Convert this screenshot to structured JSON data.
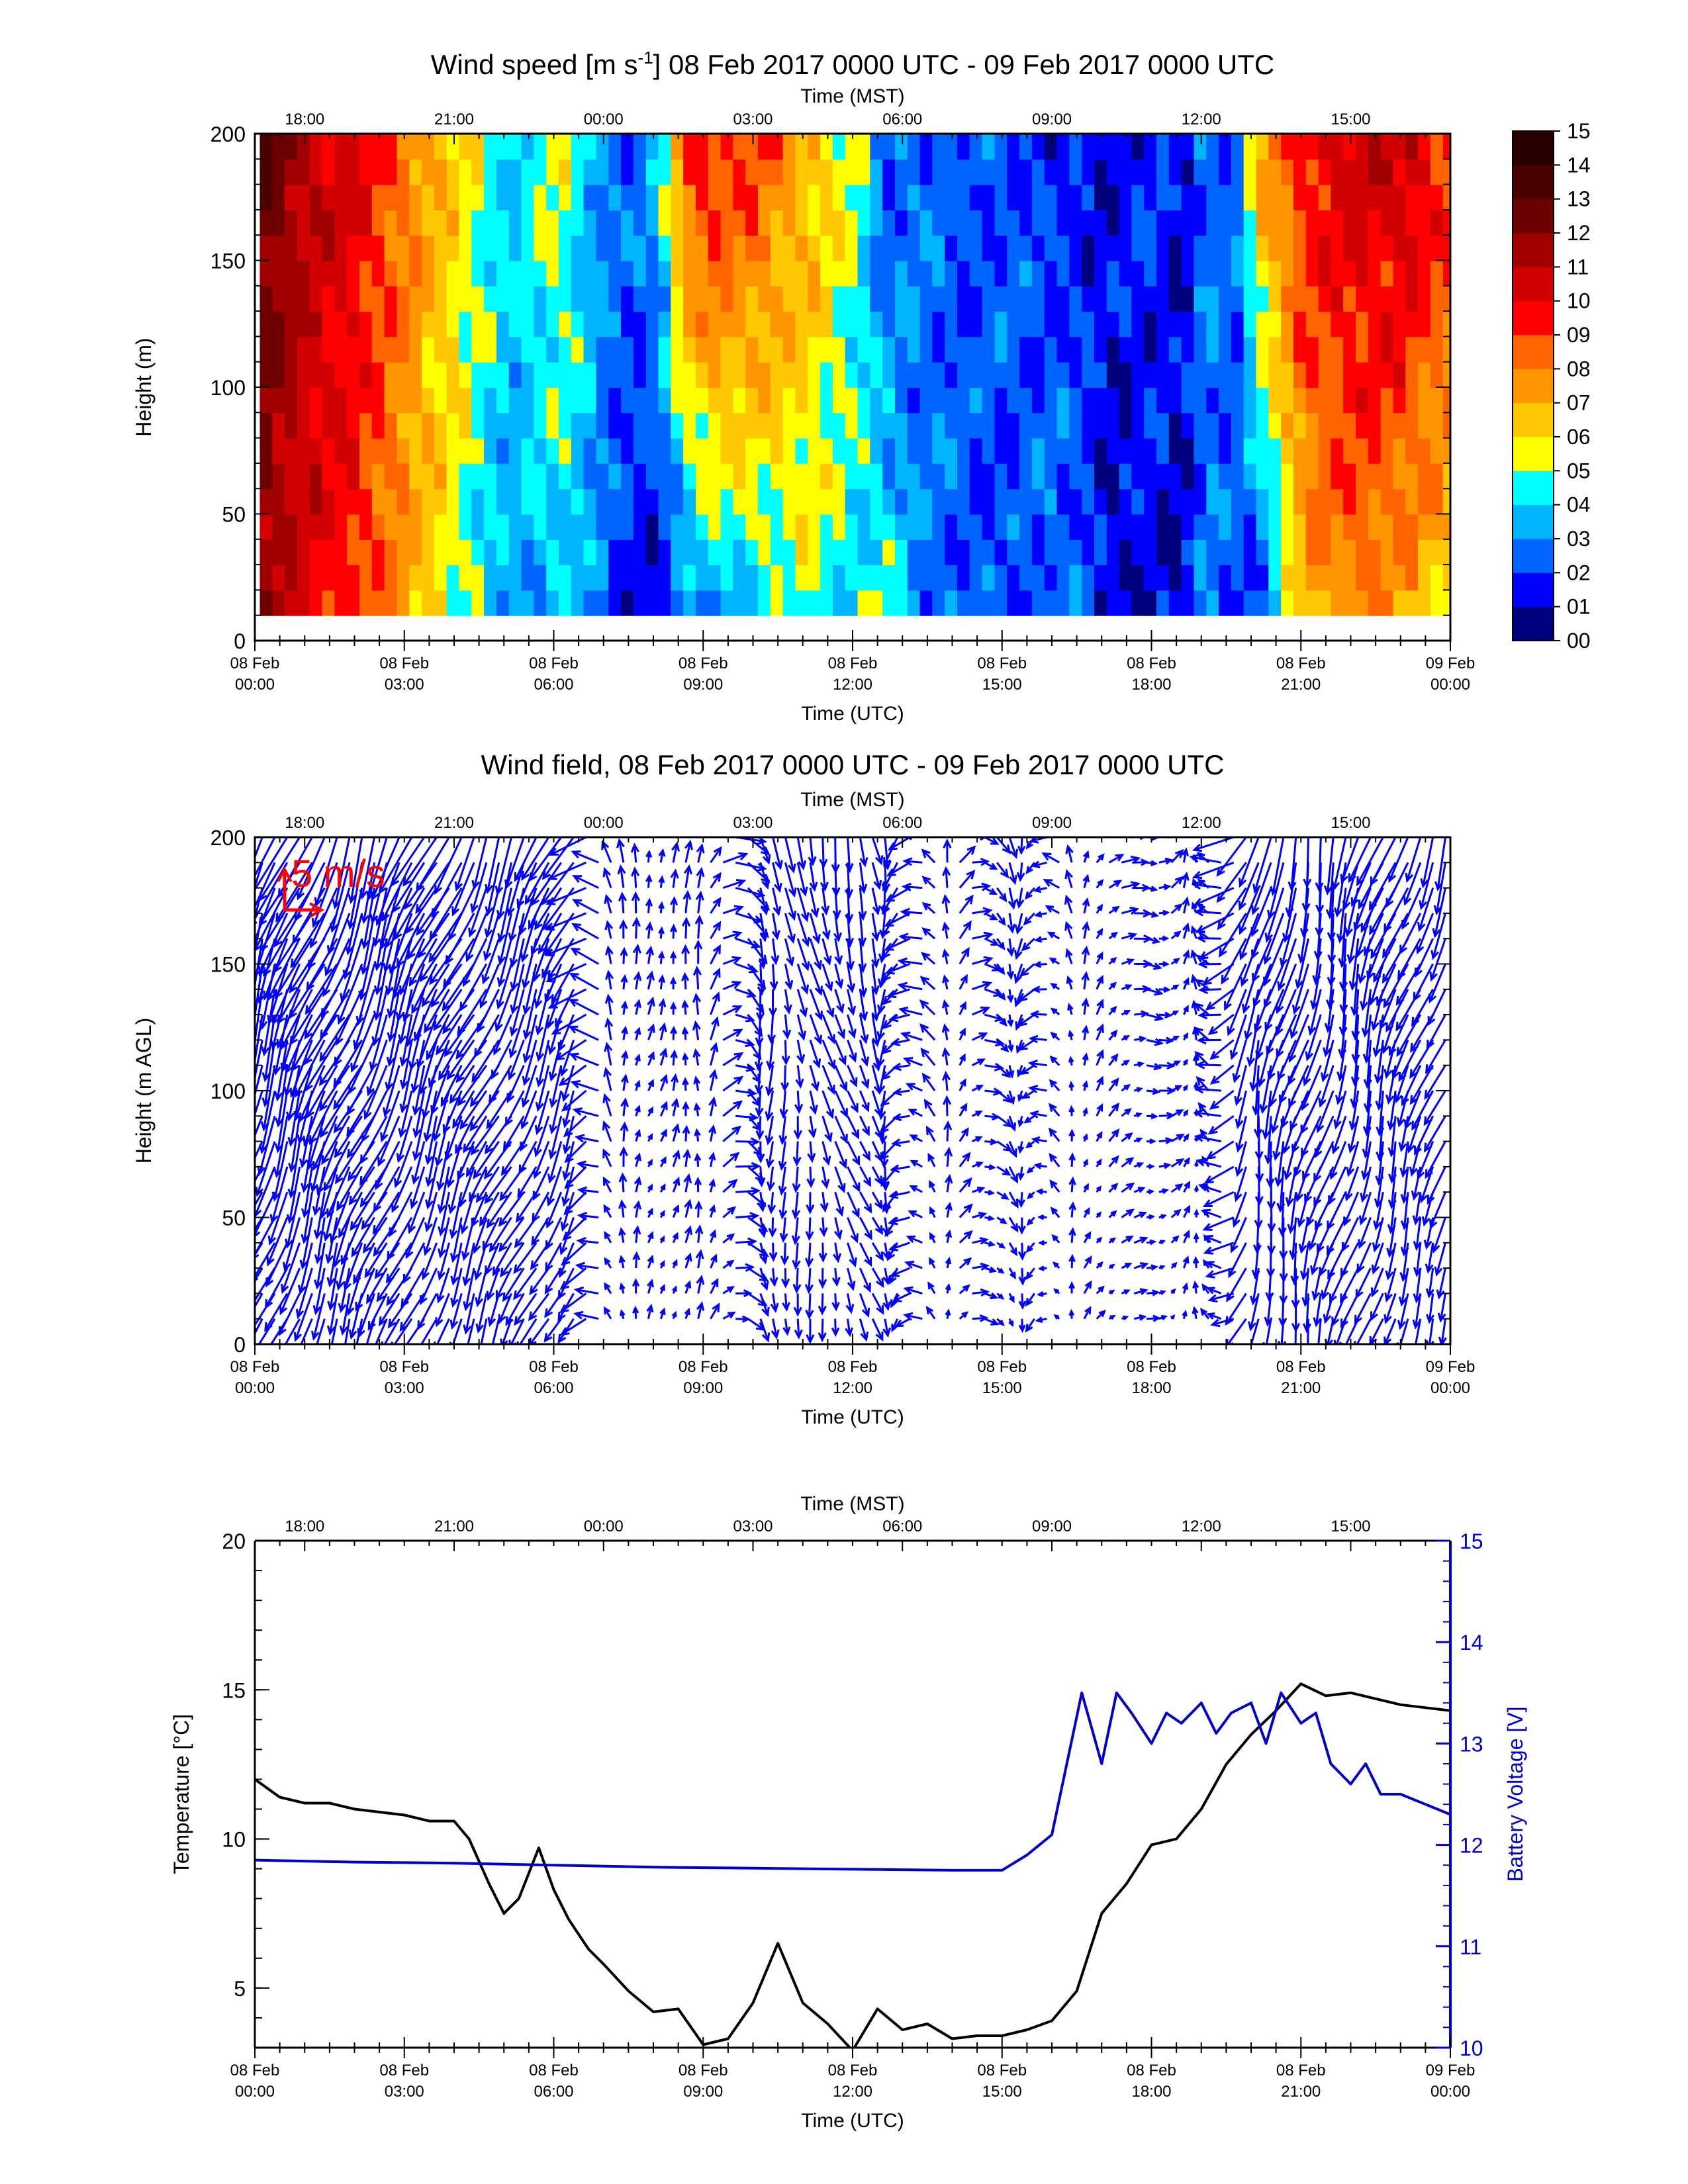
{
  "chart_data": [
    {
      "type": "heatmap",
      "title_main": "Wind speed [m s",
      "title_sup": "-1",
      "title_rest": "] 08 Feb 2017 0000 UTC - 09 Feb 2017 0000 UTC",
      "xlabel": "Time (UTC)",
      "x2label": "Time (MST)",
      "ylabel": "Height (m)",
      "xlim": [
        0,
        24
      ],
      "ylim": [
        0,
        200
      ],
      "yticks": [
        "0",
        "50",
        "100",
        "150",
        "200"
      ],
      "xticks_top": [
        "18:00",
        "21:00",
        "00:00",
        "03:00",
        "06:00",
        "09:00",
        "12:00",
        "15:00"
      ],
      "xticks_bottom_date": [
        "08 Feb",
        "08 Feb",
        "08 Feb",
        "08 Feb",
        "08 Feb",
        "08 Feb",
        "08 Feb",
        "08 Feb",
        "09 Feb"
      ],
      "xticks_bottom_time": [
        "00:00",
        "03:00",
        "06:00",
        "09:00",
        "12:00",
        "15:00",
        "18:00",
        "21:00",
        "00:00"
      ],
      "colorbar_labels": [
        "00",
        "01",
        "02",
        "03",
        "04",
        "05",
        "06",
        "07",
        "08",
        "09",
        "10",
        "11",
        "12",
        "13",
        "14",
        "15"
      ],
      "colorbar_colors": [
        "#00007f",
        "#0000ff",
        "#0064ff",
        "#00b4ff",
        "#00ffff",
        "#ffff00",
        "#ffc800",
        "#ff9600",
        "#ff6400",
        "#ff0000",
        "#d20000",
        "#a00000",
        "#6e0000",
        "#4a0000",
        "#2a0000"
      ],
      "x_hours": [
        0,
        1,
        2,
        3,
        4,
        5,
        6,
        6.5,
        7,
        7.5,
        8,
        8.5,
        9,
        10,
        11,
        11.5,
        12,
        12.5,
        13,
        14,
        15,
        16,
        16.5,
        17,
        18,
        18.5,
        19,
        19.5,
        20,
        21,
        22,
        23,
        24
      ],
      "surface_speed": [
        11.5,
        10,
        9,
        7,
        5,
        3,
        4,
        3.5,
        2,
        1.5,
        1,
        2.5,
        3,
        4,
        5,
        4.5,
        4,
        5,
        3,
        2.5,
        2,
        3,
        2.5,
        1,
        1.5,
        1,
        3,
        2,
        1.5,
        7,
        8,
        7,
        6
      ],
      "speed_at_200m": [
        13,
        11,
        10,
        8,
        6,
        4,
        5.5,
        4,
        3,
        2.5,
        4,
        9,
        10,
        9,
        7,
        6,
        5,
        2,
        3,
        2,
        2.5,
        1.5,
        1.5,
        1.5,
        2,
        1,
        3,
        2,
        7,
        10,
        10.5,
        11,
        9
      ]
    },
    {
      "type": "quiver",
      "title": "Wind field, 08 Feb 2017 0000 UTC - 09 Feb 2017 0000 UTC",
      "xlabel": "Time (UTC)",
      "x2label": "Time (MST)",
      "ylabel": "Height (m AGL)",
      "xlim": [
        0,
        24
      ],
      "ylim": [
        0,
        200
      ],
      "yticks": [
        "0",
        "50",
        "100",
        "150",
        "200"
      ],
      "xticks_top": [
        "18:00",
        "21:00",
        "00:00",
        "03:00",
        "06:00",
        "09:00",
        "12:00",
        "15:00"
      ],
      "xticks_bottom_date": [
        "08 Feb",
        "08 Feb",
        "08 Feb",
        "08 Feb",
        "08 Feb",
        "08 Feb",
        "08 Feb",
        "08 Feb",
        "09 Feb"
      ],
      "xticks_bottom_time": [
        "00:00",
        "03:00",
        "06:00",
        "09:00",
        "12:00",
        "15:00",
        "18:00",
        "21:00",
        "00:00"
      ],
      "reference_vector_label": "5 m/s",
      "reference_speed": 5,
      "arrow_color": "#0000ff",
      "reference_color": "#ff0000",
      "time_resolution_hours": 0.25,
      "heights_m": [
        10,
        20,
        30,
        40,
        50,
        60,
        70,
        80,
        90,
        100,
        110,
        120,
        130,
        140,
        150,
        160,
        170,
        180,
        190,
        200
      ],
      "regime_hours": [
        0,
        6.5,
        7.2,
        8.0,
        9.0,
        10.2,
        12.5,
        13.5,
        14.5,
        15.5,
        16.5,
        18.0,
        19.0,
        20.0,
        24
      ],
      "regime_direction_deg": [
        200,
        205,
        350,
        20,
        0,
        180,
        160,
        300,
        90,
        200,
        10,
        100,
        340,
        190,
        200
      ],
      "regime_speed": [
        11,
        7,
        3,
        2,
        3,
        4.5,
        4.5,
        3,
        2.5,
        2.5,
        2,
        2,
        1.5,
        8,
        7
      ]
    },
    {
      "type": "line",
      "xlabel": "Time (UTC)",
      "x2label": "Time (MST)",
      "ylabel": "Temperature [°C]",
      "y2label": "Battery Voltage [V]",
      "xlim": [
        0,
        24
      ],
      "ylim": [
        3,
        20
      ],
      "y2lim": [
        10,
        15
      ],
      "yticks": [
        "5",
        "10",
        "15",
        "20"
      ],
      "y2ticks": [
        "10",
        "11",
        "12",
        "13",
        "14",
        "15"
      ],
      "xticks_top": [
        "18:00",
        "21:00",
        "00:00",
        "03:00",
        "06:00",
        "09:00",
        "12:00",
        "15:00"
      ],
      "xticks_bottom_date": [
        "08 Feb",
        "08 Feb",
        "08 Feb",
        "08 Feb",
        "08 Feb",
        "08 Feb",
        "08 Feb",
        "08 Feb",
        "09 Feb"
      ],
      "xticks_bottom_time": [
        "00:00",
        "03:00",
        "06:00",
        "09:00",
        "12:00",
        "15:00",
        "18:00",
        "21:00",
        "00:00"
      ],
      "series": [
        {
          "name": "Temperature",
          "axis": "left",
          "color": "#000000",
          "x": [
            0,
            0.5,
            1,
            1.5,
            2,
            2.5,
            3,
            3.5,
            4,
            4.3,
            4.7,
            5,
            5.3,
            5.7,
            6,
            6.3,
            6.7,
            7,
            7.5,
            8,
            8.5,
            9,
            9.5,
            10,
            10.5,
            11,
            11.5,
            12,
            12.5,
            13,
            13.5,
            14,
            14.5,
            15,
            15.5,
            16,
            16.5,
            17,
            17.5,
            18,
            18.5,
            19,
            19.5,
            20,
            20.5,
            21,
            21.5,
            22,
            22.5,
            23,
            23.5,
            24
          ],
          "y": [
            12.0,
            11.4,
            11.2,
            11.2,
            11.0,
            10.9,
            10.8,
            10.6,
            10.6,
            10.0,
            8.5,
            7.5,
            8.0,
            9.7,
            8.3,
            7.3,
            6.3,
            5.8,
            4.9,
            4.2,
            4.3,
            3.1,
            3.3,
            4.5,
            6.5,
            4.5,
            3.8,
            2.9,
            4.3,
            3.6,
            3.8,
            3.3,
            3.4,
            3.4,
            3.6,
            3.9,
            4.9,
            7.5,
            8.5,
            9.8,
            10.0,
            11.0,
            12.5,
            13.5,
            14.3,
            15.2,
            14.8,
            14.9,
            14.7,
            14.5,
            14.4,
            14.3
          ]
        },
        {
          "name": "Battery Voltage",
          "axis": "right",
          "color": "#0000cc",
          "x": [
            0,
            2,
            4,
            6,
            8,
            10,
            12,
            14,
            15,
            15.5,
            16,
            16.3,
            16.6,
            17,
            17.3,
            17.6,
            18,
            18.3,
            18.6,
            19,
            19.3,
            19.6,
            20,
            20.3,
            20.6,
            21,
            21.3,
            21.6,
            22,
            22.3,
            22.6,
            23,
            23.5,
            24
          ],
          "y": [
            11.85,
            11.83,
            11.82,
            11.8,
            11.78,
            11.77,
            11.76,
            11.75,
            11.75,
            11.9,
            12.1,
            12.8,
            13.5,
            12.8,
            13.5,
            13.3,
            13.0,
            13.3,
            13.2,
            13.4,
            13.1,
            13.3,
            13.4,
            13.0,
            13.5,
            13.2,
            13.3,
            12.8,
            12.6,
            12.8,
            12.5,
            12.5,
            12.4,
            12.3
          ]
        }
      ]
    }
  ]
}
